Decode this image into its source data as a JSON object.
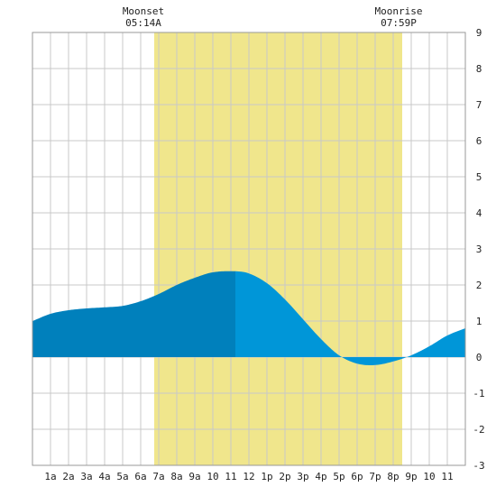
{
  "chart_data": {
    "type": "area",
    "title": "",
    "xlabel": "",
    "ylabel": "",
    "x_tick_labels": [
      "1a",
      "2a",
      "3a",
      "4a",
      "5a",
      "6a",
      "7a",
      "8a",
      "9a",
      "10",
      "11",
      "12",
      "1p",
      "2p",
      "3p",
      "4p",
      "5p",
      "6p",
      "7p",
      "8p",
      "9p",
      "10",
      "11"
    ],
    "y_ticks": [
      9,
      8,
      7,
      6,
      5,
      4,
      3,
      2,
      1,
      0,
      -1,
      -2,
      -3
    ],
    "xlim": [
      0,
      24
    ],
    "ylim": [
      -3,
      9
    ],
    "grid": true,
    "annotations": {
      "moonset": {
        "label": "Moonset",
        "time": "05:14A",
        "hour": 6.75
      },
      "moonrise": {
        "label": "Moonrise",
        "time": "07:59P",
        "hour": 20.5
      }
    },
    "daylight_band": {
      "start_hour": 6.75,
      "end_hour": 20.5,
      "color": "#f0e68c"
    },
    "series": [
      {
        "x": [
          0,
          1,
          2,
          3,
          4,
          5,
          6,
          7,
          8,
          9,
          10,
          11.25,
          12,
          13,
          14,
          15,
          16,
          17,
          18,
          19,
          20,
          21,
          22,
          23,
          24
        ],
        "values": [
          1.0,
          1.2,
          1.3,
          1.35,
          1.38,
          1.42,
          1.55,
          1.75,
          2.0,
          2.2,
          2.35,
          2.38,
          2.32,
          2.05,
          1.6,
          1.05,
          0.5,
          0.05,
          -0.18,
          -0.22,
          -0.12,
          0.05,
          0.3,
          0.6,
          0.8
        ]
      }
    ],
    "colors": {
      "fill_dark": "#0080bc",
      "fill_light": "#0096d8",
      "split_hour": 11.25,
      "grid": "#c8c8c8",
      "background": "#ffffff"
    }
  }
}
